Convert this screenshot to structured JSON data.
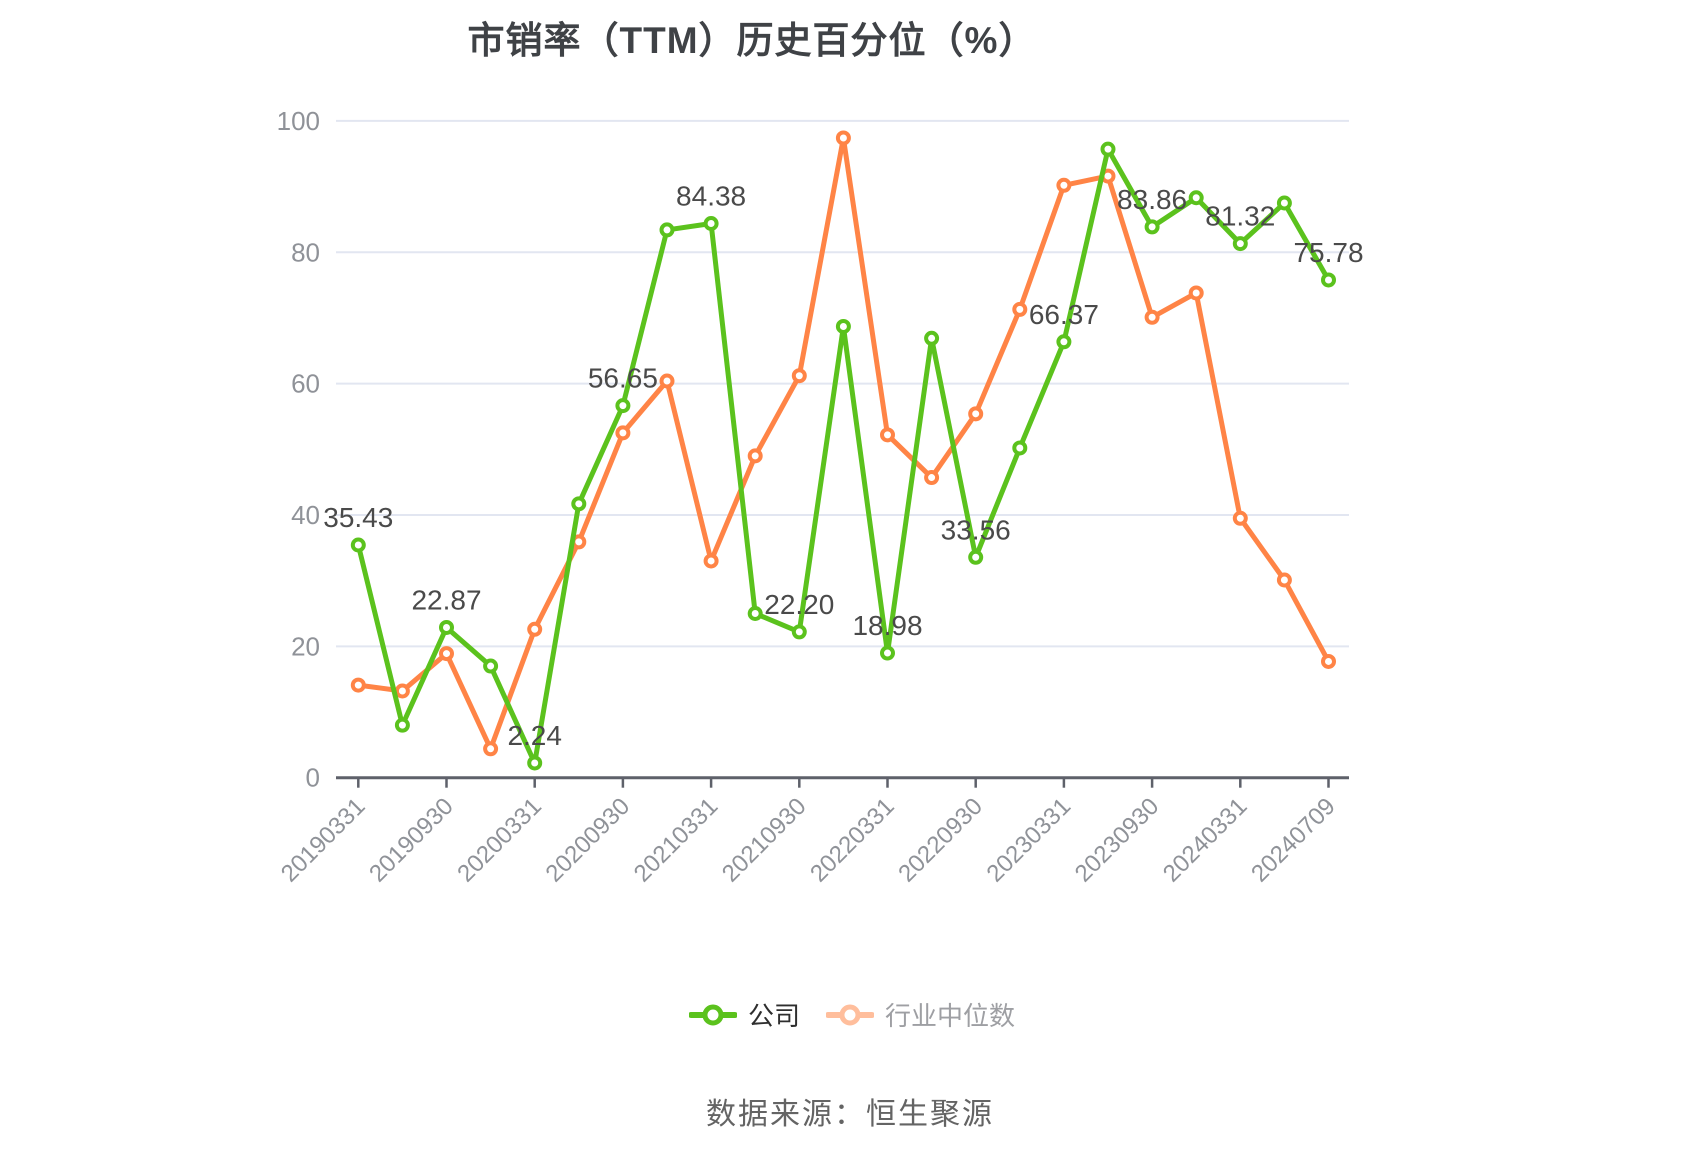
{
  "title": "市销率（TTM）历史百分位（%）",
  "source_note": "数据来源：恒生聚源",
  "legend": {
    "position": "bottom",
    "items": [
      {
        "label": "公司",
        "icon": "line-with-circle",
        "icon_color": "#5bc21d",
        "text_color": "#2e2e2e"
      },
      {
        "label": "行业中位数",
        "icon": "line-with-circle",
        "icon_color": "#ffbe9c",
        "text_color": "#9e9fa3"
      }
    ]
  },
  "chart_data": {
    "type": "line",
    "title": "市销率（TTM）历史百分位（%）",
    "x_axis": {
      "tick_labels": [
        "20190331",
        "20190930",
        "20200331",
        "20200930",
        "20210331",
        "20210930",
        "20220331",
        "20220930",
        "20230331",
        "20230930",
        "20240331",
        "20240709"
      ],
      "ticks_every_n_points": 2,
      "num_points": 23,
      "label_rotation_deg": 45
    },
    "y_axis": {
      "ticks": [
        0,
        20,
        40,
        60,
        80,
        100
      ],
      "range": [
        0,
        100
      ],
      "grid": true
    },
    "colors": {
      "grid": "#e2e6f1",
      "axis": "#5e616a",
      "data_label": "#4a4a4a",
      "axis_label": "#8f9298"
    },
    "series": [
      {
        "name": "公司",
        "color": "#5bc21d",
        "values": [
          35.43,
          8.0,
          22.87,
          17.0,
          2.24,
          41.7,
          56.65,
          83.4,
          84.38,
          25.0,
          22.2,
          68.7,
          18.98,
          66.9,
          33.56,
          50.2,
          66.37,
          95.7,
          83.86,
          88.3,
          81.32,
          87.5,
          75.78
        ]
      },
      {
        "name": "行业中位数",
        "color": "#ff8446",
        "values": [
          14.1,
          13.2,
          18.9,
          4.4,
          22.6,
          35.9,
          52.5,
          60.4,
          33.0,
          49.0,
          61.2,
          97.4,
          52.2,
          45.7,
          55.4,
          71.3,
          90.2,
          91.6,
          70.1,
          73.8,
          39.5,
          30.1,
          17.7
        ]
      }
    ],
    "point_labels": {
      "series": "公司",
      "entries": [
        {
          "index": 0,
          "text": "35.43"
        },
        {
          "index": 2,
          "text": "22.87"
        },
        {
          "index": 4,
          "text": "2.24"
        },
        {
          "index": 6,
          "text": "56.65"
        },
        {
          "index": 8,
          "text": "84.38"
        },
        {
          "index": 10,
          "text": "22.20"
        },
        {
          "index": 12,
          "text": "18.98"
        },
        {
          "index": 14,
          "text": "33.56"
        },
        {
          "index": 16,
          "text": "66.37"
        },
        {
          "index": 18,
          "text": "83.86"
        },
        {
          "index": 20,
          "text": "81.32"
        },
        {
          "index": 22,
          "text": "75.78"
        }
      ]
    },
    "legend_position": "bottom"
  }
}
